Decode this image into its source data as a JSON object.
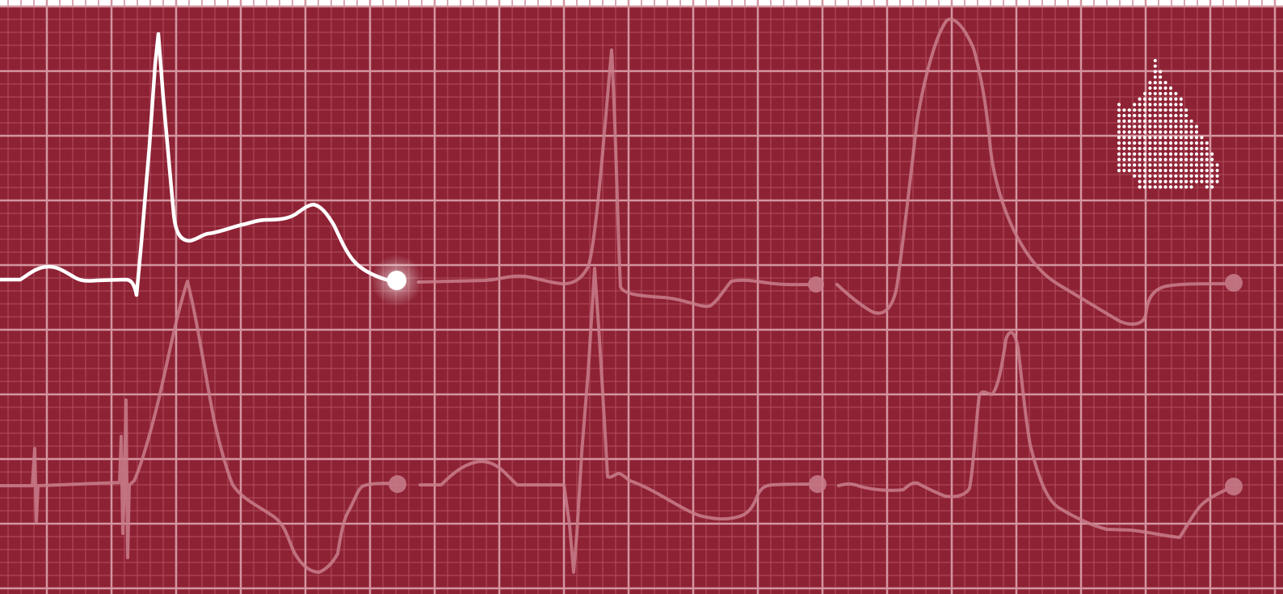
{
  "colors": {
    "background": "#8e2235",
    "grid_minor": "#b25060",
    "grid_major": "#d3959f",
    "trace_active": "#ffffff",
    "trace_faded": "#c97e8b",
    "top_bar": "#ffffff"
  },
  "icons": {
    "logo": "dotted-map-logo-icon",
    "cursor": "glowing-dot-icon"
  },
  "grid": {
    "minor_per_major": 5
  }
}
